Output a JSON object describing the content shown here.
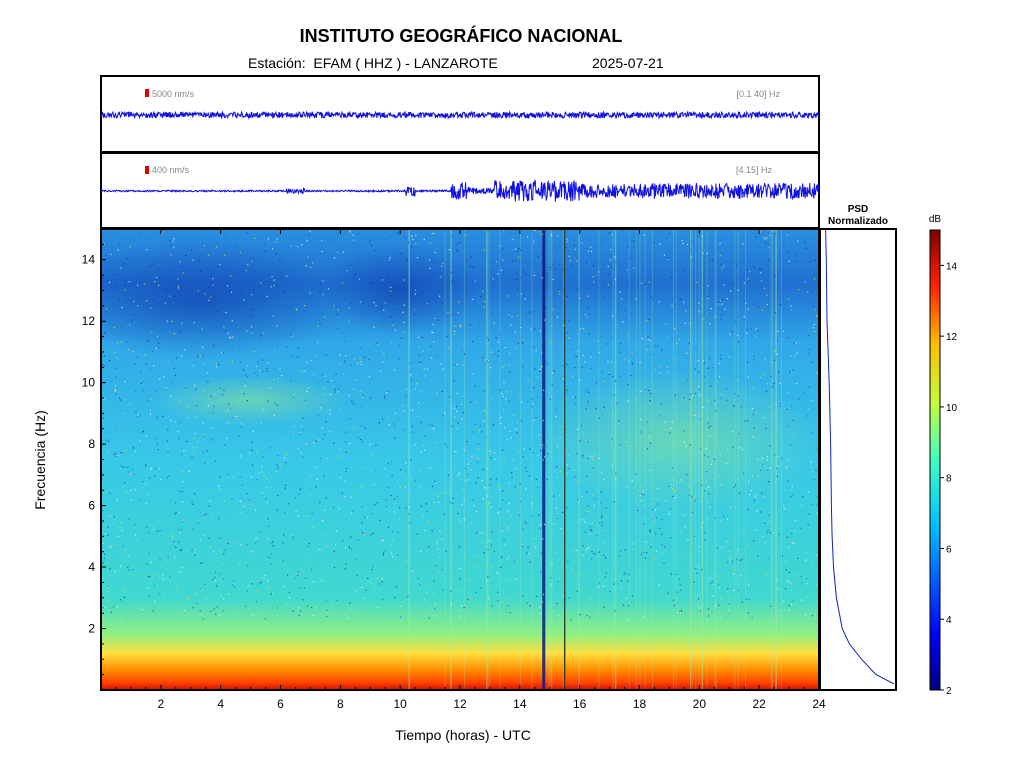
{
  "header": {
    "title": "INSTITUTO GEOGRÁFICO NACIONAL",
    "station_line": "Estación:  EFAM ( HHZ ) - LANZAROTE",
    "date": "2025-07-21"
  },
  "traces": [
    {
      "scale_label": "5000 nm/s",
      "filter_label": "[0.1 40] Hz",
      "scale_color": "#e00000",
      "trace_color": "#1010e0"
    },
    {
      "scale_label": "400 nm/s",
      "filter_label": "[4 15] Hz",
      "scale_color": "#e00000",
      "trace_color": "#1010e0"
    }
  ],
  "psd": {
    "title_line1": "PSD",
    "title_line2": "Normalizado"
  },
  "colorbar": {
    "label": "dB",
    "range": [
      2,
      15
    ],
    "ticks": [
      "2",
      "4",
      "6",
      "8",
      "10",
      "12",
      "14"
    ]
  },
  "chart_data": {
    "type": "heatmap",
    "xlabel": "Tiempo (horas) - UTC",
    "ylabel": "Frecuencia  (Hz)",
    "xlim": [
      0,
      24
    ],
    "ylim": [
      0,
      15
    ],
    "xticks": [
      "2",
      "4",
      "6",
      "8",
      "10",
      "12",
      "14",
      "16",
      "18",
      "20",
      "22",
      "24"
    ],
    "yticks": [
      "2",
      "4",
      "6",
      "8",
      "10",
      "12",
      "14"
    ],
    "vertical_events_hours": [
      10.3,
      11.7,
      12.9,
      14.8,
      15.5,
      17.2,
      20.1
    ],
    "psd_curve": [
      {
        "f": 0.2,
        "v": 1.0
      },
      {
        "f": 0.5,
        "v": 0.75
      },
      {
        "f": 1.0,
        "v": 0.55
      },
      {
        "f": 1.5,
        "v": 0.38
      },
      {
        "f": 2.0,
        "v": 0.28
      },
      {
        "f": 3.0,
        "v": 0.2
      },
      {
        "f": 4.0,
        "v": 0.16
      },
      {
        "f": 5.0,
        "v": 0.14
      },
      {
        "f": 6.0,
        "v": 0.13
      },
      {
        "f": 8.0,
        "v": 0.12
      },
      {
        "f": 10.0,
        "v": 0.1
      },
      {
        "f": 12.0,
        "v": 0.07
      },
      {
        "f": 14.0,
        "v": 0.06
      },
      {
        "f": 15.0,
        "v": 0.05
      }
    ]
  }
}
